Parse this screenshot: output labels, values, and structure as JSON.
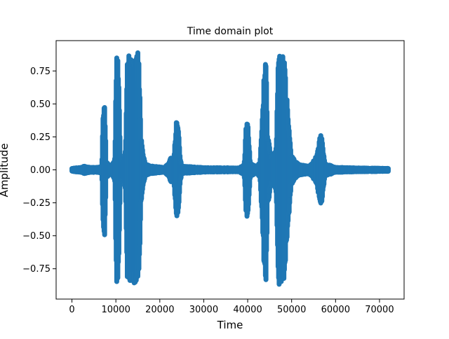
{
  "chart_data": {
    "type": "scatter",
    "title": "Time domain plot",
    "xlabel": "Time",
    "ylabel": "Amplitude",
    "xlim": [
      -3600,
      75600
    ],
    "ylim": [
      -0.98,
      0.98
    ],
    "x_ticks": [
      0,
      10000,
      20000,
      30000,
      40000,
      50000,
      60000,
      70000
    ],
    "x_tick_labels": [
      "0",
      "10000",
      "20000",
      "30000",
      "40000",
      "50000",
      "60000",
      "70000"
    ],
    "y_ticks": [
      -0.75,
      -0.5,
      -0.25,
      0.0,
      0.25,
      0.5,
      0.75
    ],
    "y_tick_labels": [
      "−0.75",
      "−0.50",
      "−0.25",
      "0.00",
      "0.25",
      "0.50",
      "0.75"
    ],
    "grid": false,
    "series": [
      {
        "color": "#1f77b4",
        "envelope": [
          [
            0,
            0.012
          ],
          [
            2000,
            0.02
          ],
          [
            2800,
            0.03
          ],
          [
            4000,
            0.02
          ],
          [
            6000,
            0.02
          ],
          [
            6800,
            0.03
          ],
          [
            7000,
            0.36
          ],
          [
            7200,
            0.5
          ],
          [
            7400,
            0.56
          ],
          [
            7600,
            0.4
          ],
          [
            7800,
            0.06
          ],
          [
            9000,
            0.03
          ],
          [
            9800,
            0.1
          ],
          [
            10000,
            0.8
          ],
          [
            10200,
            0.88
          ],
          [
            10500,
            0.89
          ],
          [
            10700,
            0.7
          ],
          [
            11000,
            0.1
          ],
          [
            11800,
            0.06
          ],
          [
            12200,
            0.19
          ],
          [
            12600,
            0.9
          ],
          [
            13000,
            0.9
          ],
          [
            13400,
            0.88
          ],
          [
            13800,
            0.9
          ],
          [
            14200,
            0.9
          ],
          [
            14600,
            0.88
          ],
          [
            15000,
            0.9
          ],
          [
            15400,
            0.78
          ],
          [
            15700,
            0.3
          ],
          [
            16200,
            0.12
          ],
          [
            16800,
            0.05
          ],
          [
            18000,
            0.03
          ],
          [
            21000,
            0.02
          ],
          [
            22000,
            0.05
          ],
          [
            22500,
            0.1
          ],
          [
            23200,
            0.08
          ],
          [
            23600,
            0.32
          ],
          [
            23900,
            0.43
          ],
          [
            24200,
            0.36
          ],
          [
            24600,
            0.12
          ],
          [
            25000,
            0.03
          ],
          [
            30000,
            0.018
          ],
          [
            38000,
            0.015
          ],
          [
            39200,
            0.04
          ],
          [
            39600,
            0.32
          ],
          [
            39900,
            0.4
          ],
          [
            40200,
            0.3
          ],
          [
            40600,
            0.05
          ],
          [
            42000,
            0.03
          ],
          [
            42800,
            0.06
          ],
          [
            43400,
            0.5
          ],
          [
            43800,
            0.87
          ],
          [
            44200,
            0.88
          ],
          [
            44500,
            0.3
          ],
          [
            45500,
            0.08
          ],
          [
            46500,
            0.18
          ],
          [
            46900,
            0.88
          ],
          [
            47300,
            0.9
          ],
          [
            47700,
            0.88
          ],
          [
            48300,
            0.9
          ],
          [
            48700,
            0.7
          ],
          [
            49300,
            0.4
          ],
          [
            49900,
            0.12
          ],
          [
            51000,
            0.06
          ],
          [
            52000,
            0.04
          ],
          [
            54000,
            0.03
          ],
          [
            55000,
            0.07
          ],
          [
            55800,
            0.12
          ],
          [
            56300,
            0.25
          ],
          [
            56800,
            0.3
          ],
          [
            57200,
            0.17
          ],
          [
            57600,
            0.05
          ],
          [
            60000,
            0.02
          ],
          [
            65000,
            0.015
          ],
          [
            72000,
            0.012
          ]
        ]
      }
    ]
  }
}
